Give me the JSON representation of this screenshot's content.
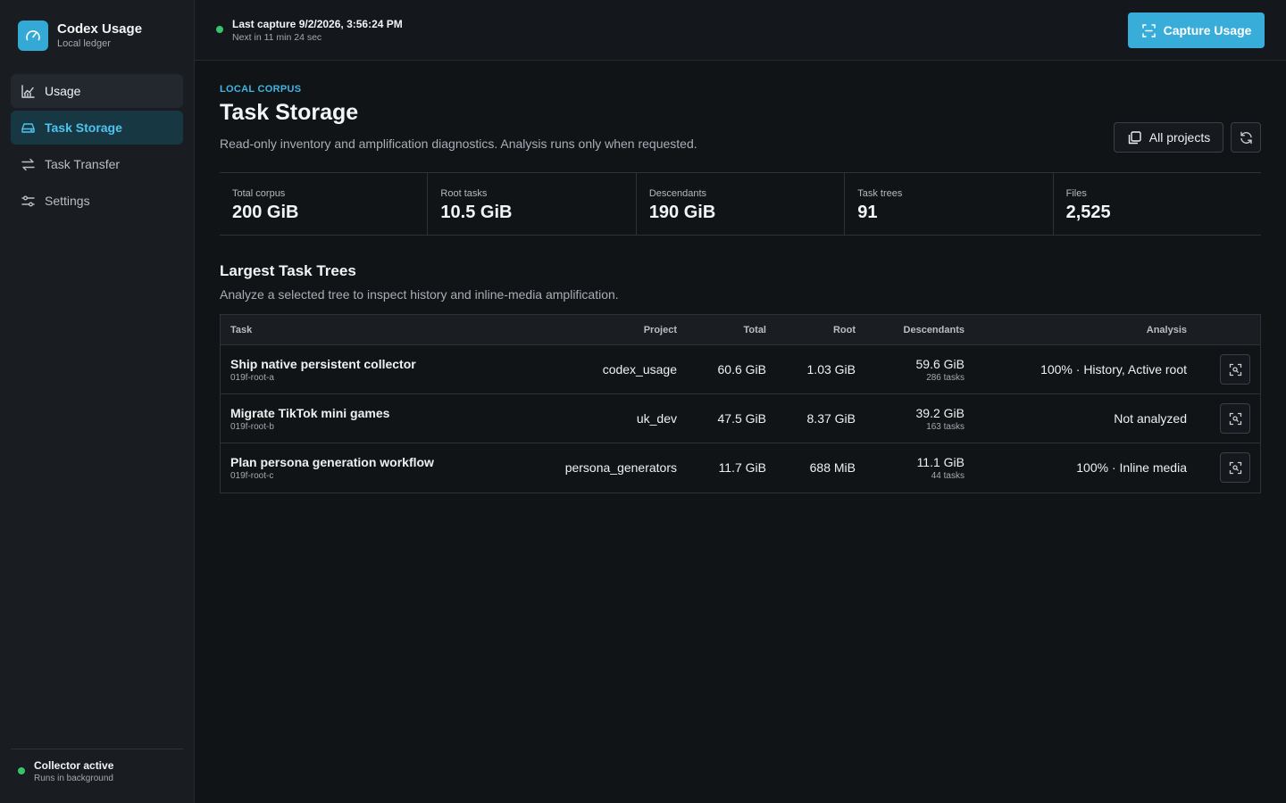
{
  "app": {
    "title": "Codex Usage",
    "subtitle": "Local ledger"
  },
  "nav": [
    {
      "label": "Usage",
      "icon": "chart-icon",
      "state": "hover"
    },
    {
      "label": "Task Storage",
      "icon": "drive-icon",
      "state": "active"
    },
    {
      "label": "Task Transfer",
      "icon": "transfer-icon",
      "state": ""
    },
    {
      "label": "Settings",
      "icon": "sliders-icon",
      "state": ""
    }
  ],
  "collector": {
    "title": "Collector active",
    "subtitle": "Runs in background"
  },
  "topbar": {
    "capture_title": "Last capture 9/2/2026, 3:56:24 PM",
    "capture_next": "Next in 11 min 24 sec",
    "capture_button": "Capture Usage"
  },
  "page": {
    "eyebrow": "LOCAL CORPUS",
    "title": "Task Storage",
    "description": "Read-only inventory and amplification diagnostics. Analysis runs only when requested.",
    "projects_button": "All projects"
  },
  "stats": [
    {
      "label": "Total corpus",
      "value": "200 GiB"
    },
    {
      "label": "Root tasks",
      "value": "10.5 GiB"
    },
    {
      "label": "Descendants",
      "value": "190 GiB"
    },
    {
      "label": "Task trees",
      "value": "91"
    },
    {
      "label": "Files",
      "value": "2,525"
    }
  ],
  "section": {
    "title": "Largest Task Trees",
    "description": "Analyze a selected tree to inspect history and inline-media amplification."
  },
  "table": {
    "headers": {
      "task": "Task",
      "project": "Project",
      "total": "Total",
      "root": "Root",
      "descendants": "Descendants",
      "analysis": "Analysis"
    },
    "rows": [
      {
        "name": "Ship native persistent collector",
        "id": "019f-root-a",
        "project": "codex_usage",
        "total": "60.6 GiB",
        "root": "1.03 GiB",
        "descendants": "59.6 GiB",
        "desc_tasks": "286 tasks",
        "analysis": "100% · History, Active root"
      },
      {
        "name": "Migrate TikTok mini games",
        "id": "019f-root-b",
        "project": "uk_dev",
        "total": "47.5 GiB",
        "root": "8.37 GiB",
        "descendants": "39.2 GiB",
        "desc_tasks": "163 tasks",
        "analysis": "Not analyzed"
      },
      {
        "name": "Plan persona generation workflow",
        "id": "019f-root-c",
        "project": "persona_generators",
        "total": "11.7 GiB",
        "root": "688 MiB",
        "descendants": "11.1 GiB",
        "desc_tasks": "44 tasks",
        "analysis": "100% · Inline media"
      }
    ]
  },
  "colors": {
    "accent": "#38add9",
    "status_ok": "#35c46c",
    "background": "#111417"
  }
}
